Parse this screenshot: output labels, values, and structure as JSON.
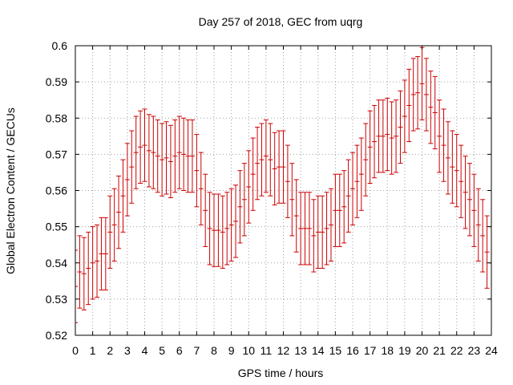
{
  "chart_data": {
    "type": "scatter",
    "title": "Day 257 of 2018, GEC from uqrg",
    "xlabel": "GPS time / hours",
    "ylabel": "Global Electron Content / GECUs",
    "xlim": [
      0,
      24
    ],
    "ylim": [
      0.52,
      0.6
    ],
    "x_ticks": [
      "0",
      "1",
      "2",
      "3",
      "4",
      "5",
      "6",
      "7",
      "8",
      "9",
      "10",
      "11",
      "12",
      "13",
      "14",
      "15",
      "16",
      "17",
      "18",
      "19",
      "20",
      "21",
      "22",
      "23",
      "24"
    ],
    "y_ticks": [
      "0.52",
      "0.53",
      "0.54",
      "0.55",
      "0.56",
      "0.57",
      "0.58",
      "0.59",
      "0.6"
    ],
    "grid": true,
    "legend": "none",
    "color": "#cc0000",
    "error_bar": 0.01,
    "series": [
      {
        "x": [
          0,
          0.25,
          0.5,
          0.75,
          1,
          1.25,
          1.5,
          1.75,
          2,
          2.25,
          2.5,
          2.75,
          3,
          3.25,
          3.5,
          3.75,
          4,
          4.25,
          4.5,
          4.75,
          5,
          5.25,
          5.5,
          5.75,
          6,
          6.25,
          6.5,
          6.75,
          7,
          7.25,
          7.5,
          7.75,
          8,
          8.25,
          8.5,
          8.75,
          9,
          9.25,
          9.5,
          9.75,
          10,
          10.25,
          10.5,
          10.75,
          11,
          11.25,
          11.5,
          11.75,
          12,
          12.25,
          12.5,
          12.75,
          13,
          13.25,
          13.5,
          13.75,
          14,
          14.25,
          14.5,
          14.75,
          15,
          15.25,
          15.5,
          15.75,
          16,
          16.25,
          16.5,
          16.75,
          17,
          17.25,
          17.5,
          17.75,
          18,
          18.25,
          18.5,
          18.75,
          19,
          19.25,
          19.5,
          19.75,
          20,
          20.25,
          20.5,
          20.75,
          21,
          21.25,
          21.5,
          21.75,
          22,
          22.25,
          22.5,
          22.75,
          23,
          23.25,
          23.5,
          23.75,
          24
        ],
        "y": [
          0.5335,
          0.5375,
          0.537,
          0.5385,
          0.54,
          0.5405,
          0.5425,
          0.5425,
          0.5485,
          0.5505,
          0.554,
          0.5585,
          0.563,
          0.5665,
          0.5705,
          0.572,
          0.5725,
          0.571,
          0.5705,
          0.5695,
          0.5685,
          0.569,
          0.568,
          0.5695,
          0.5705,
          0.57,
          0.5695,
          0.5695,
          0.5655,
          0.5605,
          0.5545,
          0.5495,
          0.549,
          0.549,
          0.5485,
          0.5495,
          0.5505,
          0.5515,
          0.5555,
          0.5575,
          0.561,
          0.5645,
          0.5675,
          0.5685,
          0.5695,
          0.5685,
          0.566,
          0.5665,
          0.5665,
          0.5625,
          0.5575,
          0.553,
          0.5495,
          0.5495,
          0.5495,
          0.5475,
          0.5485,
          0.5485,
          0.5495,
          0.5505,
          0.5545,
          0.5545,
          0.5555,
          0.5585,
          0.5605,
          0.5625,
          0.5645,
          0.5685,
          0.572,
          0.5735,
          0.575,
          0.575,
          0.5755,
          0.5745,
          0.575,
          0.5775,
          0.5805,
          0.5835,
          0.5865,
          0.587,
          0.5895,
          0.5865,
          0.583,
          0.5815,
          0.575,
          0.5725,
          0.569,
          0.5665,
          0.5655,
          0.5625,
          0.5595,
          0.5575,
          0.5545,
          0.5505,
          0.5475,
          0.543,
          0.54
        ]
      }
    ]
  }
}
